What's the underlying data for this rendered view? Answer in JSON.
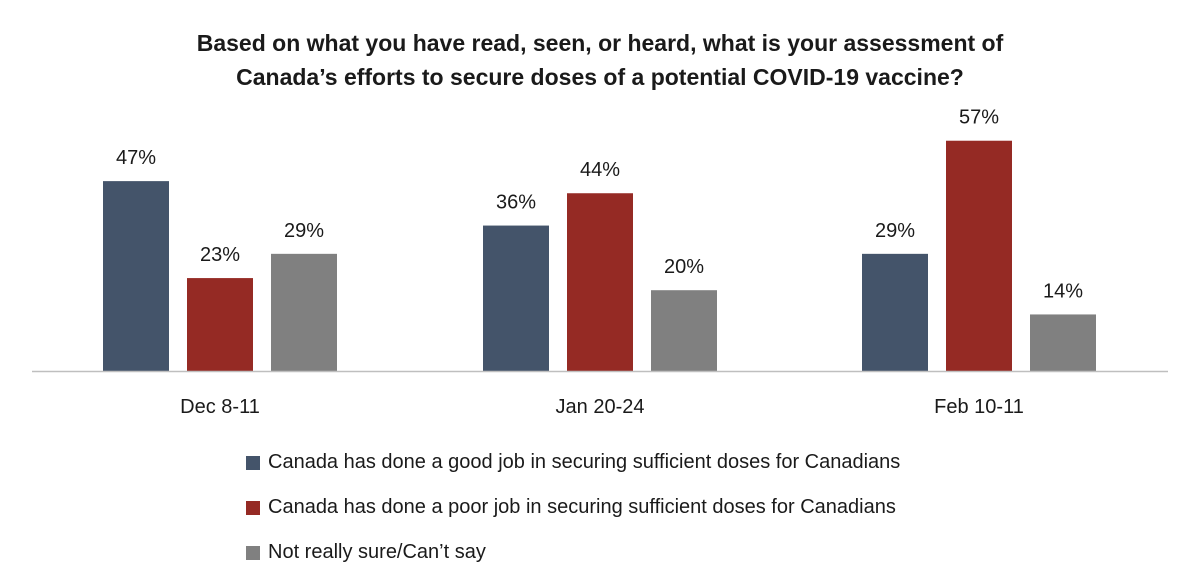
{
  "chart_data": {
    "type": "bar",
    "title": "Based on what you have read, seen, or heard, what is your assessment of Canada’s efforts to secure doses of a potential COVID-19 vaccine?",
    "title_lines": [
      "Based on what you have read, seen, or heard, what is your assessment of",
      "Canada’s efforts to secure doses of a potential COVID-19 vaccine?"
    ],
    "categories": [
      "Dec 8-11",
      "Jan 20-24",
      "Feb 10-11"
    ],
    "series": [
      {
        "name": "Canada has done a good job in securing sufficient doses for Canadians",
        "values": [
          47,
          36,
          29
        ],
        "labels": [
          "47%",
          "36%",
          "29%"
        ],
        "color": "#44546a"
      },
      {
        "name": "Canada has done a poor job in securing sufficient doses for Canadians",
        "values": [
          23,
          44,
          57
        ],
        "labels": [
          "23%",
          "44%",
          "57%"
        ],
        "color": "#952a24"
      },
      {
        "name": "Not really sure/Can’t say",
        "values": [
          29,
          20,
          14
        ],
        "labels": [
          "29%",
          "20%",
          "14%"
        ],
        "color": "#808080"
      }
    ],
    "ylim": [
      0,
      57
    ],
    "grid": false,
    "legend_position": "bottom",
    "xlabel": "",
    "ylabel": ""
  }
}
